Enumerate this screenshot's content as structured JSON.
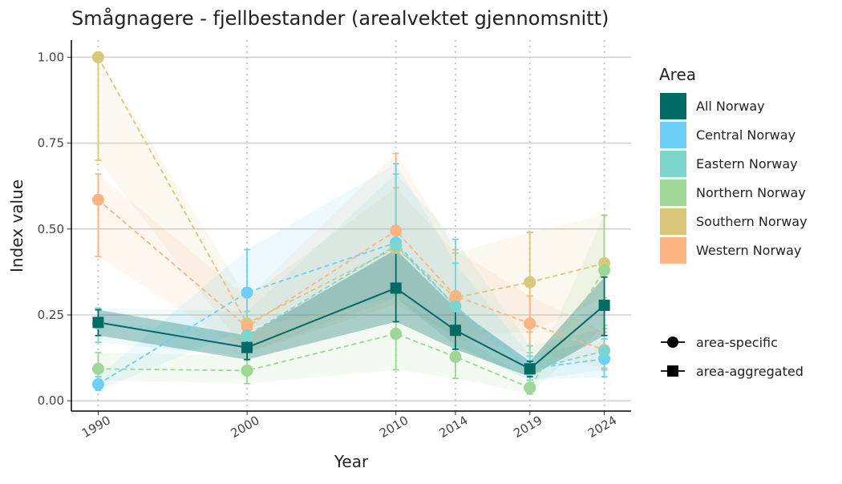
{
  "chart_data": {
    "type": "line",
    "title": "Smågnagere - fjellbestander (arealvektet gjennomsnitt)",
    "xlabel": "Year",
    "ylabel": "Index value",
    "x": [
      1990,
      2000,
      2010,
      2014,
      2019,
      2024
    ],
    "x_tick_labels": [
      "1990",
      "2000",
      "2010",
      "2014",
      "2019",
      "2024"
    ],
    "xlim": [
      1988.2,
      2025.8
    ],
    "ylim": [
      -0.03,
      1.05
    ],
    "y_ticks": [
      0,
      0.25,
      0.5,
      0.75,
      1.0
    ],
    "y_tick_labels": [
      "0.00",
      "0.25",
      "0.50",
      "0.75",
      "1.00"
    ],
    "grid": "horizontal major lines; dotted vertical lines at data years",
    "legend_placement": "right",
    "legend_title": "Area",
    "shape_legend": [
      {
        "label": "area-specific",
        "shape": "circle"
      },
      {
        "label": "area-aggregated",
        "shape": "square"
      }
    ],
    "series": [
      {
        "name": "Southern Norway",
        "color": "#D9C77A",
        "shape": "circle",
        "style": "dashed",
        "values": [
          1.0,
          0.225,
          0.445,
          0.3,
          0.345,
          0.4
        ],
        "lower": [
          0.7,
          0.14,
          0.28,
          0.19,
          0.2,
          0.3
        ],
        "upper": [
          1.0,
          0.3,
          0.62,
          0.43,
          0.49,
          0.54
        ]
      },
      {
        "name": "Western Norway",
        "color": "#FDB382",
        "shape": "circle",
        "style": "dashed",
        "values": [
          0.585,
          0.215,
          0.495,
          0.305,
          0.225,
          0.148
        ],
        "lower": [
          0.42,
          0.14,
          0.3,
          0.18,
          0.14,
          0.095
        ],
        "upper": [
          0.66,
          0.3,
          0.72,
          0.44,
          0.305,
          0.2
        ]
      },
      {
        "name": "Central Norway",
        "color": "#6DCFF6",
        "shape": "circle",
        "style": "dashed",
        "values": [
          0.048,
          0.315,
          0.46,
          0.275,
          0.093,
          0.122
        ],
        "lower": [
          0.03,
          0.21,
          0.3,
          0.16,
          0.06,
          0.07
        ],
        "upper": [
          0.07,
          0.44,
          0.69,
          0.4,
          0.13,
          0.18
        ]
      },
      {
        "name": "Eastern Norway",
        "color": "#7CD6CE",
        "shape": "circle",
        "style": "dashed",
        "values": [
          0.225,
          0.19,
          0.452,
          0.275,
          0.09,
          0.145
        ],
        "lower": [
          0.17,
          0.13,
          0.3,
          0.16,
          0.06,
          0.09
        ],
        "upper": [
          0.27,
          0.26,
          0.66,
          0.47,
          0.16,
          0.21
        ]
      },
      {
        "name": "Northern Norway",
        "color": "#9DD695",
        "shape": "circle",
        "style": "dashed",
        "values": [
          0.093,
          0.088,
          0.195,
          0.128,
          0.038,
          0.38
        ],
        "lower": [
          0.06,
          0.05,
          0.09,
          0.065,
          0.02,
          0.22
        ],
        "upper": [
          0.14,
          0.13,
          0.3,
          0.2,
          0.06,
          0.54
        ]
      },
      {
        "name": "All Norway",
        "color": "#006A65",
        "shape": "square",
        "style": "solid",
        "values": [
          0.228,
          0.155,
          0.328,
          0.205,
          0.093,
          0.278
        ],
        "lower": [
          0.19,
          0.12,
          0.23,
          0.15,
          0.07,
          0.19
        ],
        "upper": [
          0.265,
          0.19,
          0.44,
          0.27,
          0.115,
          0.36
        ]
      }
    ],
    "legend_order": [
      "All Norway",
      "Central Norway",
      "Eastern Norway",
      "Northern Norway",
      "Southern Norway",
      "Western Norway"
    ]
  }
}
